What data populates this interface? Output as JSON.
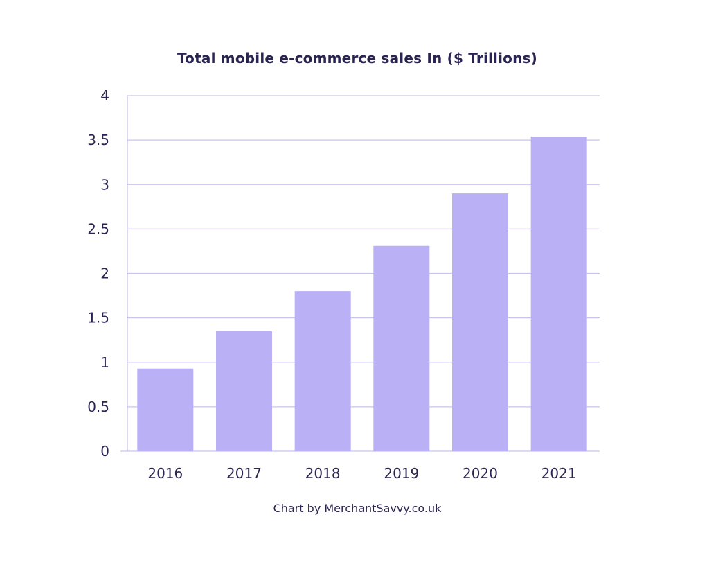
{
  "chart_data": {
    "type": "bar",
    "title": "Total mobile e-commerce sales In ($ Trillions)",
    "credit": "Chart by MerchantSavvy.co.uk",
    "xlabel": "",
    "ylabel": "",
    "categories": [
      "2016",
      "2017",
      "2018",
      "2019",
      "2020",
      "2021"
    ],
    "values": [
      0.93,
      1.35,
      1.8,
      2.31,
      2.9,
      3.54
    ],
    "ylim": [
      0,
      4
    ],
    "yticks": [
      "0",
      "0.5",
      "1",
      "1.5",
      "2",
      "2.5",
      "3",
      "3.5",
      "4"
    ],
    "grid": true,
    "legend": "none",
    "colors": {
      "bar": "#b9b0f6",
      "grid": "#c9c4ec",
      "axis": "#c9c4ec",
      "text": "#2a2450"
    }
  }
}
